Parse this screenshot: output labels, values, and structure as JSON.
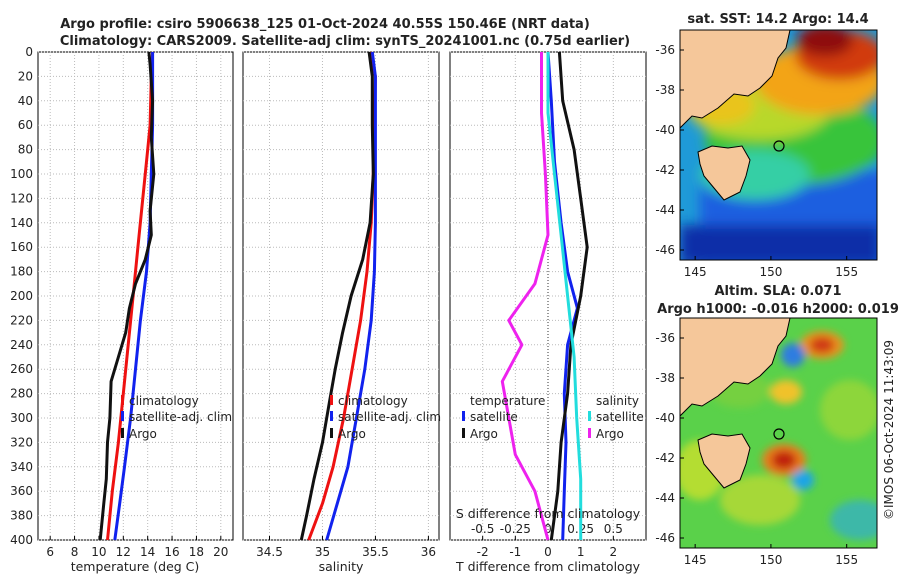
{
  "title": {
    "line1": "Argo profile: csiro 5906638_125 01-Oct-2024 40.55S 150.46E (NRT data)",
    "line2": "Climatology: CARS2009. Satellite-adj clim: synTS_20241001.nc (0.75d earlier)"
  },
  "depth_ticks": [
    0,
    20,
    40,
    60,
    80,
    100,
    120,
    140,
    160,
    180,
    200,
    220,
    240,
    260,
    280,
    300,
    320,
    340,
    360,
    380,
    400
  ],
  "chart_data": [
    {
      "type": "line",
      "id": "temperature",
      "xlabel": "temperature (deg C)",
      "ylabel": "",
      "xlim": [
        5,
        21
      ],
      "ylim": [
        400,
        0
      ],
      "xticks": [
        6,
        8,
        10,
        12,
        14,
        16,
        18,
        20
      ],
      "xtick_labels": [
        "6",
        "8",
        "10",
        "12",
        "14",
        "16",
        "18",
        "20"
      ],
      "grid": true,
      "legend": [
        "climatology",
        "satellite-adj. clim",
        "Argo"
      ],
      "series": [
        {
          "name": "climatology",
          "color": "#ee1111",
          "points": [
            [
              14.4,
              0
            ],
            [
              14.3,
              20
            ],
            [
              14.2,
              60
            ],
            [
              14.0,
              80
            ],
            [
              13.6,
              120
            ],
            [
              13.2,
              160
            ],
            [
              12.8,
              200
            ],
            [
              12.4,
              240
            ],
            [
              12.0,
              280
            ],
            [
              11.6,
              320
            ],
            [
              11.1,
              360
            ],
            [
              10.7,
              400
            ]
          ]
        },
        {
          "name": "satellite-adj. clim",
          "color": "#1122ee",
          "points": [
            [
              14.4,
              0
            ],
            [
              14.4,
              20
            ],
            [
              14.4,
              60
            ],
            [
              14.3,
              100
            ],
            [
              14.2,
              140
            ],
            [
              13.9,
              180
            ],
            [
              13.4,
              220
            ],
            [
              13.0,
              260
            ],
            [
              12.6,
              300
            ],
            [
              12.1,
              340
            ],
            [
              11.7,
              370
            ],
            [
              11.3,
              400
            ]
          ]
        },
        {
          "name": "Argo",
          "color": "#111111",
          "points": [
            [
              14.1,
              0
            ],
            [
              14.2,
              10
            ],
            [
              14.4,
              40
            ],
            [
              14.3,
              70
            ],
            [
              14.5,
              100
            ],
            [
              14.2,
              130
            ],
            [
              14.3,
              150
            ],
            [
              13.8,
              170
            ],
            [
              13.0,
              190
            ],
            [
              12.5,
              210
            ],
            [
              12.2,
              230
            ],
            [
              11.6,
              250
            ],
            [
              11.0,
              270
            ],
            [
              10.9,
              300
            ],
            [
              10.7,
              320
            ],
            [
              10.6,
              350
            ],
            [
              10.4,
              370
            ],
            [
              10.1,
              400
            ]
          ]
        }
      ]
    },
    {
      "type": "line",
      "id": "salinity",
      "xlabel": "salinity",
      "ylabel": "",
      "xlim": [
        34.25,
        36.1
      ],
      "ylim": [
        400,
        0
      ],
      "xticks": [
        34.5,
        35,
        35.5,
        36
      ],
      "xtick_labels": [
        "34.5",
        "35",
        "35.5",
        "36"
      ],
      "grid": true,
      "legend": [
        "climatology",
        "satellite-adj. clim",
        "Argo"
      ],
      "series": [
        {
          "name": "climatology",
          "color": "#ee1111",
          "points": [
            [
              35.45,
              0
            ],
            [
              35.5,
              20
            ],
            [
              35.49,
              60
            ],
            [
              35.48,
              100
            ],
            [
              35.46,
              140
            ],
            [
              35.42,
              180
            ],
            [
              35.36,
              220
            ],
            [
              35.28,
              260
            ],
            [
              35.2,
              300
            ],
            [
              35.1,
              340
            ],
            [
              35.0,
              370
            ],
            [
              34.87,
              400
            ]
          ]
        },
        {
          "name": "satellite-adj. clim",
          "color": "#1122ee",
          "points": [
            [
              35.47,
              0
            ],
            [
              35.5,
              20
            ],
            [
              35.5,
              60
            ],
            [
              35.5,
              100
            ],
            [
              35.5,
              140
            ],
            [
              35.49,
              180
            ],
            [
              35.46,
              220
            ],
            [
              35.4,
              260
            ],
            [
              35.32,
              300
            ],
            [
              35.24,
              340
            ],
            [
              35.14,
              370
            ],
            [
              35.04,
              400
            ]
          ]
        },
        {
          "name": "Argo",
          "color": "#111111",
          "points": [
            [
              35.44,
              0
            ],
            [
              35.47,
              20
            ],
            [
              35.47,
              60
            ],
            [
              35.48,
              100
            ],
            [
              35.45,
              140
            ],
            [
              35.38,
              170
            ],
            [
              35.27,
              200
            ],
            [
              35.19,
              230
            ],
            [
              35.12,
              260
            ],
            [
              35.06,
              290
            ],
            [
              35.0,
              320
            ],
            [
              34.92,
              350
            ],
            [
              34.85,
              380
            ],
            [
              34.8,
              400
            ]
          ]
        }
      ]
    },
    {
      "type": "line",
      "id": "differences",
      "xlabel": "T difference from climatology",
      "secondary_xlabel": "S difference from climatology",
      "xlim": [
        -3,
        3
      ],
      "ylim": [
        400,
        0
      ],
      "xticks": [
        -2,
        -1,
        0,
        1,
        2
      ],
      "xtick_labels": [
        "-2",
        "-1",
        "0",
        "1",
        "2"
      ],
      "secondary_xticks": [
        -0.5,
        -0.25,
        0,
        0.25,
        0.5
      ],
      "secondary_xtick_labels": [
        "-0.5",
        "-0.25",
        "0",
        "0.25",
        "0.5"
      ],
      "zero_line": true,
      "grid": true,
      "legend_temperature_title": "temperature",
      "legend_salinity_title": "salinity",
      "legend_temperature": [
        "satellite",
        "Argo"
      ],
      "legend_salinity": [
        "satellite",
        "Argo"
      ],
      "series": [
        {
          "name": "temperature satellite",
          "color": "#1122ee",
          "points": [
            [
              0.0,
              0
            ],
            [
              0.1,
              40
            ],
            [
              0.2,
              90
            ],
            [
              0.4,
              140
            ],
            [
              0.6,
              180
            ],
            [
              0.9,
              210
            ],
            [
              0.6,
              240
            ],
            [
              0.5,
              280
            ],
            [
              0.55,
              320
            ],
            [
              0.5,
              360
            ],
            [
              0.45,
              400
            ]
          ]
        },
        {
          "name": "temperature Argo",
          "color": "#111111",
          "points": [
            [
              0.35,
              0
            ],
            [
              0.45,
              40
            ],
            [
              0.8,
              80
            ],
            [
              1.0,
              120
            ],
            [
              1.2,
              160
            ],
            [
              1.0,
              200
            ],
            [
              0.7,
              240
            ],
            [
              0.6,
              280
            ],
            [
              0.4,
              320
            ],
            [
              0.3,
              360
            ],
            [
              0.1,
              400
            ]
          ]
        },
        {
          "name": "salinity satellite",
          "color": "#22dddd",
          "points": [
            [
              0.0,
              0
            ],
            [
              0.0,
              50
            ],
            [
              0.05,
              100
            ],
            [
              0.1,
              150
            ],
            [
              0.15,
              200
            ],
            [
              0.2,
              250
            ],
            [
              0.22,
              300
            ],
            [
              0.25,
              350
            ],
            [
              0.25,
              400
            ]
          ]
        },
        {
          "name": "salinity Argo",
          "color": "#ee22ee",
          "points": [
            [
              -0.05,
              0
            ],
            [
              -0.05,
              50
            ],
            [
              -0.02,
              100
            ],
            [
              0.0,
              150
            ],
            [
              -0.1,
              190
            ],
            [
              -0.3,
              220
            ],
            [
              -0.2,
              240
            ],
            [
              -0.35,
              270
            ],
            [
              -0.3,
              300
            ],
            [
              -0.25,
              330
            ],
            [
              -0.1,
              360
            ],
            [
              0.0,
              400
            ]
          ]
        }
      ]
    },
    {
      "type": "heatmap",
      "id": "sst_map",
      "title": "sat. SST: 14.2 Argo: 14.4",
      "xlim": [
        144,
        157
      ],
      "ylim": [
        -46.5,
        -35
      ],
      "xticks": [
        145,
        150,
        155
      ],
      "xtick_labels": [
        "145",
        "150",
        "155"
      ],
      "yticks": [
        -36,
        -38,
        -40,
        -42,
        -44,
        -46
      ],
      "ytick_labels": [
        "-36",
        "-38",
        "-40",
        "-42",
        "-44",
        "-46"
      ],
      "marker": {
        "lon": 150.46,
        "lat": -40.55
      }
    },
    {
      "type": "heatmap",
      "id": "sla_map",
      "title": "Altim. SLA: 0.071",
      "subtitle": "Argo h1000: -0.016 h2000: 0.019",
      "xlim": [
        144,
        157
      ],
      "ylim": [
        -46.5,
        -35
      ],
      "xticks": [
        145,
        150,
        155
      ],
      "xtick_labels": [
        "145",
        "150",
        "155"
      ],
      "yticks": [
        -36,
        -38,
        -40,
        -42,
        -44,
        -46
      ],
      "ytick_labels": [
        "-36",
        "-38",
        "-40",
        "-42",
        "-44",
        "-46"
      ],
      "marker": {
        "lon": 150.46,
        "lat": -40.55
      }
    }
  ],
  "watermark": "©IMOS 06-Oct-2024 11:43:09",
  "colors": {
    "land": "#f5c79a",
    "axis": "#000000",
    "grid": "#bbbbbb"
  }
}
